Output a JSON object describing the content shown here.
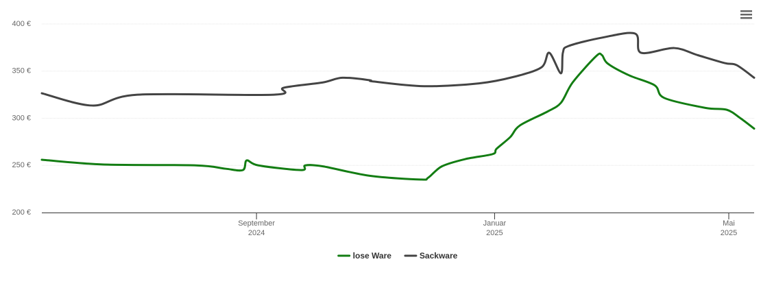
{
  "chart_data": {
    "type": "line",
    "xlim": [
      "2024-05-14",
      "2025-05-14"
    ],
    "xticks": [
      {
        "value": "2024-09-01",
        "label": "September 2024"
      },
      {
        "value": "2025-01-01",
        "label": "Januar 2025"
      },
      {
        "value": "2025-05-01",
        "label": "Mai 2025"
      }
    ],
    "ylim": [
      200,
      400
    ],
    "yticks": [
      {
        "value": 200,
        "label": "200 €"
      },
      {
        "value": 250,
        "label": "250 €"
      },
      {
        "value": 300,
        "label": "300 €"
      },
      {
        "value": 350,
        "label": "350 €"
      },
      {
        "value": 400,
        "label": "400 €"
      }
    ],
    "grid": true,
    "legend": "bottom",
    "series": [
      {
        "name": "lose Ware",
        "color": "#137d13",
        "x": [
          "2024-05-14",
          "2024-06-14",
          "2024-08-01",
          "2024-08-16",
          "2024-08-25",
          "2024-08-27",
          "2024-09-02",
          "2024-09-24",
          "2024-09-26",
          "2024-10-05",
          "2024-10-29",
          "2024-11-24",
          "2024-11-28",
          "2024-12-05",
          "2024-12-17",
          "2024-12-31",
          "2025-01-02",
          "2025-01-09",
          "2025-01-14",
          "2025-01-28",
          "2025-02-04",
          "2025-02-10",
          "2025-02-22",
          "2025-02-25",
          "2025-02-28",
          "2025-03-11",
          "2025-03-24",
          "2025-03-29",
          "2025-04-19",
          "2025-04-30",
          "2025-05-07",
          "2025-05-14"
        ],
        "values": [
          256,
          251,
          250,
          246.5,
          245,
          255.3,
          250,
          245,
          250,
          249,
          239,
          235,
          237,
          249,
          256.7,
          262,
          267.6,
          280,
          292.4,
          307,
          316.4,
          338,
          365.8,
          367,
          358,
          345.5,
          335,
          321.5,
          311,
          309,
          300,
          289
        ]
      },
      {
        "name": "Sackware",
        "color": "#444444",
        "x": [
          "2024-05-14",
          "2024-06-09",
          "2024-07-02",
          "2024-09-10",
          "2024-09-15",
          "2024-10-05",
          "2024-10-15",
          "2024-10-29",
          "2024-10-31",
          "2024-11-26",
          "2024-12-24",
          "2025-01-11",
          "2025-01-25",
          "2025-01-29",
          "2025-02-04",
          "2025-02-05",
          "2025-02-08",
          "2025-02-25",
          "2025-03-14",
          "2025-03-17",
          "2025-04-03",
          "2025-04-15",
          "2025-04-29",
          "2025-05-05",
          "2025-05-14"
        ],
        "values": [
          326.5,
          313.5,
          325,
          325,
          332.4,
          338,
          343,
          340.4,
          339,
          334,
          337,
          344,
          354,
          369.5,
          347.6,
          369.5,
          376.7,
          385.5,
          389.8,
          369.5,
          374.5,
          367,
          358.5,
          356.4,
          343
        ]
      }
    ]
  }
}
